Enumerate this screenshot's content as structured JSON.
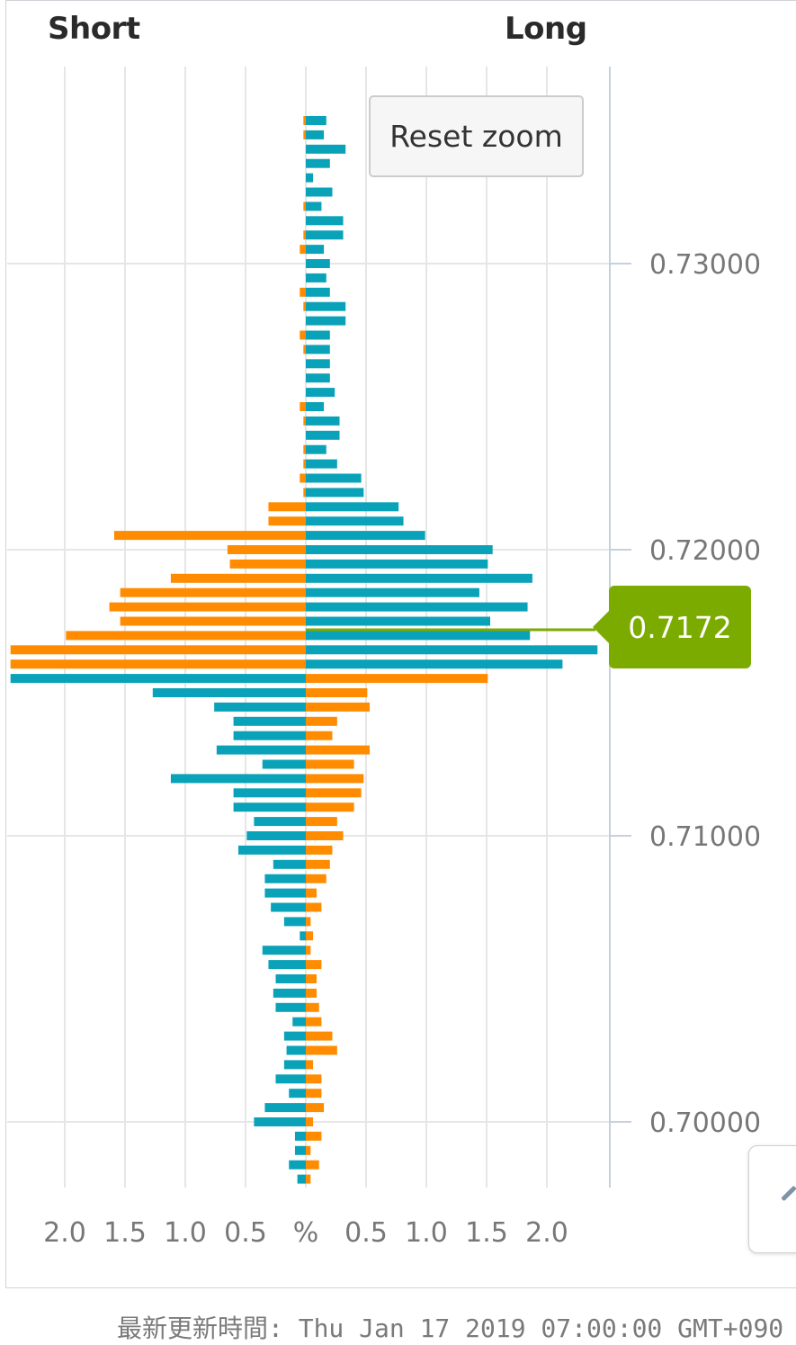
{
  "header": {
    "short_label": "Short",
    "long_label": "Long"
  },
  "reset_zoom_label": "Reset zoom",
  "current_price_label": "0.7172",
  "footer_text": "最新更新時間: Thu Jan 17 2019 07:00:00 GMT+090",
  "colors": {
    "long_bar": "#0aa2b8",
    "short_bar": "#ff8c00",
    "price_marker": "#7cab00",
    "grid": "#e6e6e6",
    "axis": "#c6d1de",
    "text": "#777777"
  },
  "chart_data": {
    "type": "bar",
    "orientation": "horizontal-butterfly",
    "x_tick_labels": [
      "2.0",
      "1.5",
      "1.0",
      "0.5",
      "%",
      "0.5",
      "1.0",
      "1.5",
      "2.0"
    ],
    "x_ticks": [
      -2.0,
      -1.5,
      -1.0,
      -0.5,
      0,
      0.5,
      1.0,
      1.5,
      2.0
    ],
    "xlim": [
      -2.5,
      2.5
    ],
    "y_tick_labels": [
      "0.73000",
      "0.72000",
      "0.71000",
      "0.70000"
    ],
    "y_ticks": [
      0.73,
      0.72,
      0.71,
      0.7
    ],
    "ylim": [
      0.6979,
      0.7366
    ],
    "price_step": 0.0005,
    "current_price": 0.7172,
    "grid": true,
    "series": [
      {
        "name": "Short",
        "color_key": "short_bar"
      },
      {
        "name": "Long",
        "color_key": "long_bar"
      }
    ],
    "rows": [
      {
        "price": 0.735,
        "left": 0.02,
        "right": 0.17,
        "left_color": "short_bar",
        "right_color": "long_bar"
      },
      {
        "price": 0.7345,
        "left": 0.02,
        "right": 0.15,
        "left_color": "short_bar",
        "right_color": "long_bar"
      },
      {
        "price": 0.734,
        "left": 0.0,
        "right": 0.33,
        "left_color": "short_bar",
        "right_color": "long_bar"
      },
      {
        "price": 0.7335,
        "left": 0.0,
        "right": 0.2,
        "left_color": "short_bar",
        "right_color": "long_bar"
      },
      {
        "price": 0.733,
        "left": 0.0,
        "right": 0.06,
        "left_color": "short_bar",
        "right_color": "long_bar"
      },
      {
        "price": 0.7325,
        "left": 0.0,
        "right": 0.22,
        "left_color": "short_bar",
        "right_color": "long_bar"
      },
      {
        "price": 0.732,
        "left": 0.02,
        "right": 0.13,
        "left_color": "short_bar",
        "right_color": "long_bar"
      },
      {
        "price": 0.7315,
        "left": 0.0,
        "right": 0.31,
        "left_color": "short_bar",
        "right_color": "long_bar"
      },
      {
        "price": 0.731,
        "left": 0.02,
        "right": 0.31,
        "left_color": "short_bar",
        "right_color": "long_bar"
      },
      {
        "price": 0.7305,
        "left": 0.05,
        "right": 0.15,
        "left_color": "short_bar",
        "right_color": "long_bar"
      },
      {
        "price": 0.73,
        "left": 0.0,
        "right": 0.2,
        "left_color": "short_bar",
        "right_color": "long_bar"
      },
      {
        "price": 0.7295,
        "left": 0.0,
        "right": 0.17,
        "left_color": "short_bar",
        "right_color": "long_bar"
      },
      {
        "price": 0.729,
        "left": 0.05,
        "right": 0.2,
        "left_color": "short_bar",
        "right_color": "long_bar"
      },
      {
        "price": 0.7285,
        "left": 0.02,
        "right": 0.33,
        "left_color": "short_bar",
        "right_color": "long_bar"
      },
      {
        "price": 0.728,
        "left": 0.0,
        "right": 0.33,
        "left_color": "short_bar",
        "right_color": "long_bar"
      },
      {
        "price": 0.7275,
        "left": 0.05,
        "right": 0.2,
        "left_color": "short_bar",
        "right_color": "long_bar"
      },
      {
        "price": 0.727,
        "left": 0.02,
        "right": 0.2,
        "left_color": "short_bar",
        "right_color": "long_bar"
      },
      {
        "price": 0.7265,
        "left": 0.0,
        "right": 0.2,
        "left_color": "short_bar",
        "right_color": "long_bar"
      },
      {
        "price": 0.726,
        "left": 0.0,
        "right": 0.2,
        "left_color": "short_bar",
        "right_color": "long_bar"
      },
      {
        "price": 0.7255,
        "left": 0.0,
        "right": 0.24,
        "left_color": "short_bar",
        "right_color": "long_bar"
      },
      {
        "price": 0.725,
        "left": 0.05,
        "right": 0.15,
        "left_color": "short_bar",
        "right_color": "long_bar"
      },
      {
        "price": 0.7245,
        "left": 0.02,
        "right": 0.28,
        "left_color": "short_bar",
        "right_color": "long_bar"
      },
      {
        "price": 0.724,
        "left": 0.0,
        "right": 0.28,
        "left_color": "short_bar",
        "right_color": "long_bar"
      },
      {
        "price": 0.7235,
        "left": 0.02,
        "right": 0.17,
        "left_color": "short_bar",
        "right_color": "long_bar"
      },
      {
        "price": 0.723,
        "left": 0.02,
        "right": 0.26,
        "left_color": "short_bar",
        "right_color": "long_bar"
      },
      {
        "price": 0.7225,
        "left": 0.05,
        "right": 0.46,
        "left_color": "short_bar",
        "right_color": "long_bar"
      },
      {
        "price": 0.722,
        "left": 0.02,
        "right": 0.48,
        "left_color": "short_bar",
        "right_color": "long_bar"
      },
      {
        "price": 0.7215,
        "left": 0.31,
        "right": 0.77,
        "left_color": "short_bar",
        "right_color": "long_bar"
      },
      {
        "price": 0.721,
        "left": 0.31,
        "right": 0.81,
        "left_color": "short_bar",
        "right_color": "long_bar"
      },
      {
        "price": 0.7205,
        "left": 1.59,
        "right": 0.99,
        "left_color": "short_bar",
        "right_color": "long_bar"
      },
      {
        "price": 0.72,
        "left": 0.65,
        "right": 1.55,
        "left_color": "short_bar",
        "right_color": "long_bar"
      },
      {
        "price": 0.7195,
        "left": 0.63,
        "right": 1.51,
        "left_color": "short_bar",
        "right_color": "long_bar"
      },
      {
        "price": 0.719,
        "left": 1.12,
        "right": 1.88,
        "left_color": "short_bar",
        "right_color": "long_bar"
      },
      {
        "price": 0.7185,
        "left": 1.54,
        "right": 1.44,
        "left_color": "short_bar",
        "right_color": "long_bar"
      },
      {
        "price": 0.718,
        "left": 1.63,
        "right": 1.84,
        "left_color": "short_bar",
        "right_color": "long_bar"
      },
      {
        "price": 0.7175,
        "left": 1.54,
        "right": 1.53,
        "left_color": "short_bar",
        "right_color": "long_bar"
      },
      {
        "price": 0.717,
        "left": 1.99,
        "right": 1.86,
        "left_color": "short_bar",
        "right_color": "long_bar"
      },
      {
        "price": 0.7165,
        "left": 2.45,
        "right": 2.42,
        "left_color": "short_bar",
        "right_color": "long_bar"
      },
      {
        "price": 0.716,
        "left": 2.45,
        "right": 2.13,
        "left_color": "short_bar",
        "right_color": "long_bar"
      },
      {
        "price": 0.7155,
        "left": 2.45,
        "right": 1.51,
        "left_color": "long_bar",
        "right_color": "short_bar"
      },
      {
        "price": 0.715,
        "left": 1.27,
        "right": 0.51,
        "left_color": "long_bar",
        "right_color": "short_bar"
      },
      {
        "price": 0.7145,
        "left": 0.76,
        "right": 0.53,
        "left_color": "long_bar",
        "right_color": "short_bar"
      },
      {
        "price": 0.714,
        "left": 0.6,
        "right": 0.26,
        "left_color": "long_bar",
        "right_color": "short_bar"
      },
      {
        "price": 0.7135,
        "left": 0.6,
        "right": 0.22,
        "left_color": "long_bar",
        "right_color": "short_bar"
      },
      {
        "price": 0.713,
        "left": 0.74,
        "right": 0.53,
        "left_color": "long_bar",
        "right_color": "short_bar"
      },
      {
        "price": 0.7125,
        "left": 0.36,
        "right": 0.4,
        "left_color": "long_bar",
        "right_color": "short_bar"
      },
      {
        "price": 0.712,
        "left": 1.12,
        "right": 0.48,
        "left_color": "long_bar",
        "right_color": "short_bar"
      },
      {
        "price": 0.7115,
        "left": 0.6,
        "right": 0.46,
        "left_color": "long_bar",
        "right_color": "short_bar"
      },
      {
        "price": 0.711,
        "left": 0.6,
        "right": 0.4,
        "left_color": "long_bar",
        "right_color": "short_bar"
      },
      {
        "price": 0.7105,
        "left": 0.43,
        "right": 0.26,
        "left_color": "long_bar",
        "right_color": "short_bar"
      },
      {
        "price": 0.71,
        "left": 0.49,
        "right": 0.31,
        "left_color": "long_bar",
        "right_color": "short_bar"
      },
      {
        "price": 0.7095,
        "left": 0.56,
        "right": 0.22,
        "left_color": "long_bar",
        "right_color": "short_bar"
      },
      {
        "price": 0.709,
        "left": 0.27,
        "right": 0.2,
        "left_color": "long_bar",
        "right_color": "short_bar"
      },
      {
        "price": 0.7085,
        "left": 0.34,
        "right": 0.17,
        "left_color": "long_bar",
        "right_color": "short_bar"
      },
      {
        "price": 0.708,
        "left": 0.34,
        "right": 0.09,
        "left_color": "long_bar",
        "right_color": "short_bar"
      },
      {
        "price": 0.7075,
        "left": 0.29,
        "right": 0.13,
        "left_color": "long_bar",
        "right_color": "short_bar"
      },
      {
        "price": 0.707,
        "left": 0.18,
        "right": 0.04,
        "left_color": "long_bar",
        "right_color": "short_bar"
      },
      {
        "price": 0.7065,
        "left": 0.05,
        "right": 0.06,
        "left_color": "long_bar",
        "right_color": "short_bar"
      },
      {
        "price": 0.706,
        "left": 0.36,
        "right": 0.04,
        "left_color": "long_bar",
        "right_color": "short_bar"
      },
      {
        "price": 0.7055,
        "left": 0.31,
        "right": 0.13,
        "left_color": "long_bar",
        "right_color": "short_bar"
      },
      {
        "price": 0.705,
        "left": 0.25,
        "right": 0.09,
        "left_color": "long_bar",
        "right_color": "short_bar"
      },
      {
        "price": 0.7045,
        "left": 0.27,
        "right": 0.09,
        "left_color": "long_bar",
        "right_color": "short_bar"
      },
      {
        "price": 0.704,
        "left": 0.25,
        "right": 0.11,
        "left_color": "long_bar",
        "right_color": "short_bar"
      },
      {
        "price": 0.7035,
        "left": 0.11,
        "right": 0.13,
        "left_color": "long_bar",
        "right_color": "short_bar"
      },
      {
        "price": 0.703,
        "left": 0.18,
        "right": 0.22,
        "left_color": "long_bar",
        "right_color": "short_bar"
      },
      {
        "price": 0.7025,
        "left": 0.16,
        "right": 0.26,
        "left_color": "long_bar",
        "right_color": "short_bar"
      },
      {
        "price": 0.702,
        "left": 0.18,
        "right": 0.06,
        "left_color": "long_bar",
        "right_color": "short_bar"
      },
      {
        "price": 0.7015,
        "left": 0.25,
        "right": 0.13,
        "left_color": "long_bar",
        "right_color": "short_bar"
      },
      {
        "price": 0.701,
        "left": 0.14,
        "right": 0.13,
        "left_color": "long_bar",
        "right_color": "short_bar"
      },
      {
        "price": 0.7005,
        "left": 0.34,
        "right": 0.15,
        "left_color": "long_bar",
        "right_color": "short_bar"
      },
      {
        "price": 0.7,
        "left": 0.43,
        "right": 0.06,
        "left_color": "long_bar",
        "right_color": "short_bar"
      },
      {
        "price": 0.6995,
        "left": 0.09,
        "right": 0.13,
        "left_color": "long_bar",
        "right_color": "short_bar"
      },
      {
        "price": 0.699,
        "left": 0.09,
        "right": 0.04,
        "left_color": "long_bar",
        "right_color": "short_bar"
      },
      {
        "price": 0.6985,
        "left": 0.14,
        "right": 0.11,
        "left_color": "long_bar",
        "right_color": "short_bar"
      },
      {
        "price": 0.698,
        "left": 0.07,
        "right": 0.04,
        "left_color": "long_bar",
        "right_color": "short_bar"
      }
    ]
  }
}
